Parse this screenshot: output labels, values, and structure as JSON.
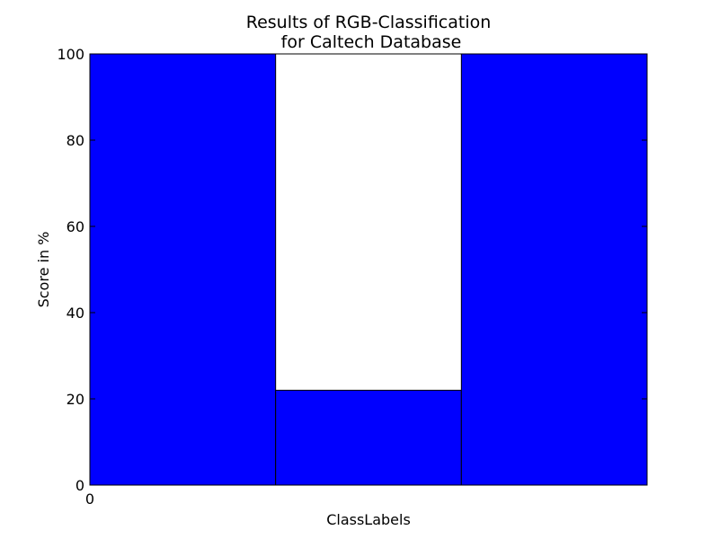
{
  "chart_data": {
    "type": "bar",
    "title": [
      "Results of RGB-Classification",
      "for Caltech Database"
    ],
    "xlabel": "ClassLabels",
    "ylabel": "Score in %",
    "categories": [
      "",
      "",
      ""
    ],
    "values": [
      100,
      22,
      100
    ],
    "ylim": [
      0,
      100
    ],
    "yticks": [
      0,
      20,
      40,
      60,
      80,
      100
    ],
    "xtick_labels": [
      "0"
    ],
    "grid": false,
    "bar_color": "#0000ff",
    "edge_color": "#000000"
  }
}
